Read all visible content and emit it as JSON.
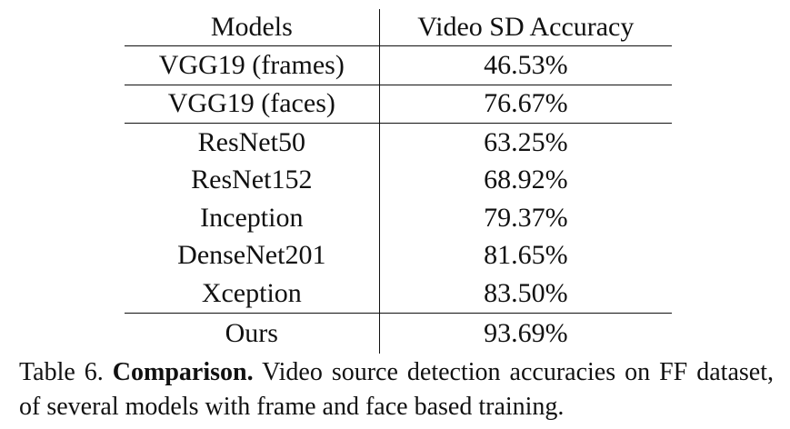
{
  "table": {
    "headers": [
      "Models",
      "Video SD Accuracy"
    ],
    "groups": [
      [
        {
          "model": "VGG19 (frames)",
          "accuracy": "46.53%"
        }
      ],
      [
        {
          "model": "VGG19 (faces)",
          "accuracy": "76.67%"
        }
      ],
      [
        {
          "model": "ResNet50",
          "accuracy": "63.25%"
        },
        {
          "model": "ResNet152",
          "accuracy": "68.92%"
        },
        {
          "model": "Inception",
          "accuracy": "79.37%"
        },
        {
          "model": "DenseNet201",
          "accuracy": "81.65%"
        },
        {
          "model": "Xception",
          "accuracy": "83.50%"
        }
      ],
      [
        {
          "model": "Ours",
          "accuracy": "93.69%",
          "bold": true
        }
      ]
    ]
  },
  "caption": {
    "label": "Table 6.",
    "bold": "Comparison.",
    "text": "Video source detection accuracies on FF dataset, of several models with frame and face based training."
  }
}
